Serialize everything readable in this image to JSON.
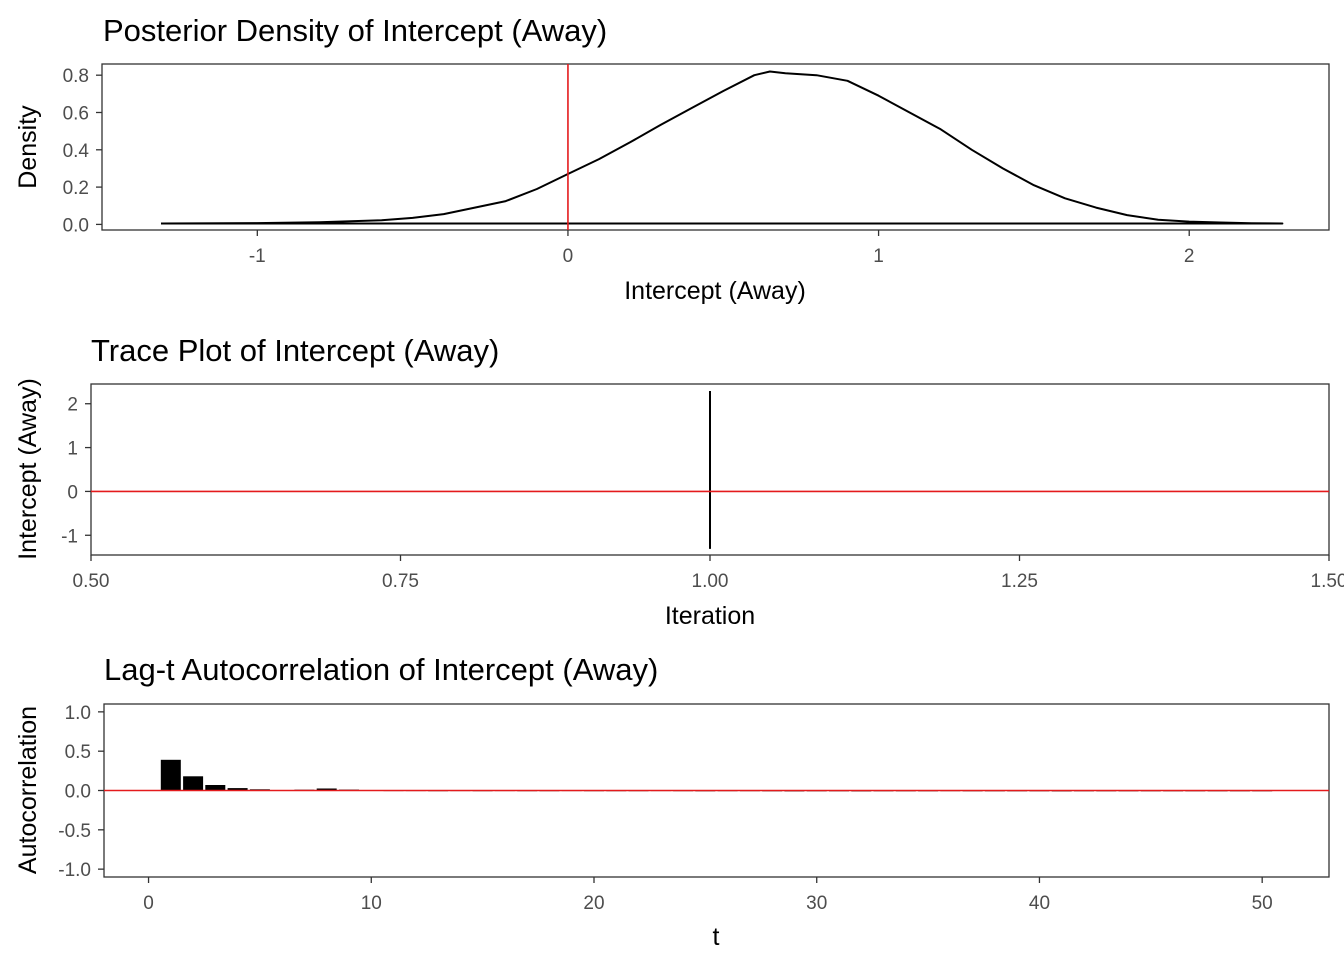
{
  "chart_data": [
    {
      "type": "line",
      "title": "Posterior Density of Intercept (Away)",
      "xlabel": "Intercept (Away)",
      "ylabel": "Density",
      "xlim": [
        -1.5,
        2.45
      ],
      "ylim": [
        -0.03,
        0.86
      ],
      "x_ticks": [
        -1,
        0,
        1,
        2
      ],
      "x_tick_labels": [
        "-1",
        "0",
        "1",
        "2"
      ],
      "y_ticks": [
        0.0,
        0.2,
        0.4,
        0.6,
        0.8
      ],
      "y_tick_labels": [
        "0.0",
        "0.2",
        "0.4",
        "0.6",
        "0.8"
      ],
      "vline": 0,
      "grid": false,
      "series": [
        {
          "x": [
            -1.31,
            -1.0,
            -0.8,
            -0.6,
            -0.5,
            -0.4,
            -0.3,
            -0.2,
            -0.1,
            0.0,
            0.1,
            0.2,
            0.3,
            0.4,
            0.5,
            0.6,
            0.65,
            0.7,
            0.8,
            0.9,
            1.0,
            1.1,
            1.2,
            1.3,
            1.4,
            1.5,
            1.6,
            1.7,
            1.8,
            1.9,
            2.0,
            2.1,
            2.2,
            2.3
          ],
          "y": [
            0.005,
            0.007,
            0.012,
            0.022,
            0.035,
            0.055,
            0.09,
            0.125,
            0.19,
            0.27,
            0.35,
            0.44,
            0.535,
            0.625,
            0.715,
            0.8,
            0.82,
            0.81,
            0.8,
            0.77,
            0.69,
            0.6,
            0.51,
            0.4,
            0.3,
            0.21,
            0.14,
            0.09,
            0.05,
            0.025,
            0.015,
            0.01,
            0.006,
            0.005
          ]
        }
      ]
    },
    {
      "type": "line",
      "title": "Trace Plot of Intercept (Away)",
      "xlabel": "Iteration",
      "ylabel": "Intercept (Away)",
      "xlim": [
        0.5,
        1.5
      ],
      "ylim": [
        -1.45,
        2.45
      ],
      "x_ticks": [
        0.5,
        0.75,
        1.0,
        1.25,
        1.5
      ],
      "x_tick_labels": [
        "0.50",
        "0.75",
        "1.00",
        "1.25",
        "1.50"
      ],
      "y_ticks": [
        -1,
        0,
        1,
        2
      ],
      "y_tick_labels": [
        "-1",
        "0",
        "1",
        "2"
      ],
      "hline": 0,
      "grid": false,
      "series": [
        {
          "x": [
            1.0,
            1.0
          ],
          "y": [
            -1.31,
            2.29
          ]
        }
      ]
    },
    {
      "type": "bar",
      "title": "Lag-t Autocorrelation of Intercept (Away)",
      "xlabel": "t",
      "ylabel": "Autocorrelation",
      "xlim": [
        -2,
        53
      ],
      "ylim": [
        -1.1,
        1.1
      ],
      "x_ticks": [
        0,
        10,
        20,
        30,
        40,
        50
      ],
      "x_tick_labels": [
        "0",
        "10",
        "20",
        "30",
        "40",
        "50"
      ],
      "y_ticks": [
        -1.0,
        -0.5,
        0.0,
        0.5,
        1.0
      ],
      "y_tick_labels": [
        "-1.0",
        "-0.5",
        "0.0",
        "0.5",
        "1.0"
      ],
      "hline": 0,
      "grid": false,
      "categories": [
        1,
        2,
        3,
        4,
        5,
        6,
        7,
        8,
        9,
        10,
        11,
        12,
        13,
        14,
        15,
        16,
        17,
        18,
        19,
        20,
        21,
        22,
        23,
        24,
        25,
        26,
        27,
        28,
        29,
        30,
        31,
        32,
        33,
        34,
        35,
        36,
        37,
        38,
        39,
        40,
        41,
        42,
        43,
        44,
        45,
        46,
        47,
        48,
        49,
        50
      ],
      "values": [
        0.39,
        0.18,
        0.07,
        0.03,
        0.015,
        0.005,
        0.01,
        0.025,
        0.012,
        0.004,
        0.003,
        0.002,
        0.001,
        0.002,
        0.001,
        0.002,
        0.001,
        0.001,
        0.002,
        0.001,
        0.001,
        0.001,
        0.002,
        0.001,
        0.0,
        0.001,
        0.001,
        0.0,
        -0.012,
        -0.004,
        -0.01,
        -0.012,
        0.0,
        0.0,
        0.0,
        0.001,
        0.0,
        0.0,
        0.0,
        -0.01,
        -0.012,
        0.0,
        0.0,
        0.0,
        0.0,
        0.0,
        0.0,
        0.0,
        -0.01,
        0.0
      ]
    }
  ],
  "colors": {
    "line": "#000000",
    "reference": "#e41a1c",
    "bar": "#000000",
    "axis": "#333333",
    "tick_text": "#4d4d4d"
  }
}
